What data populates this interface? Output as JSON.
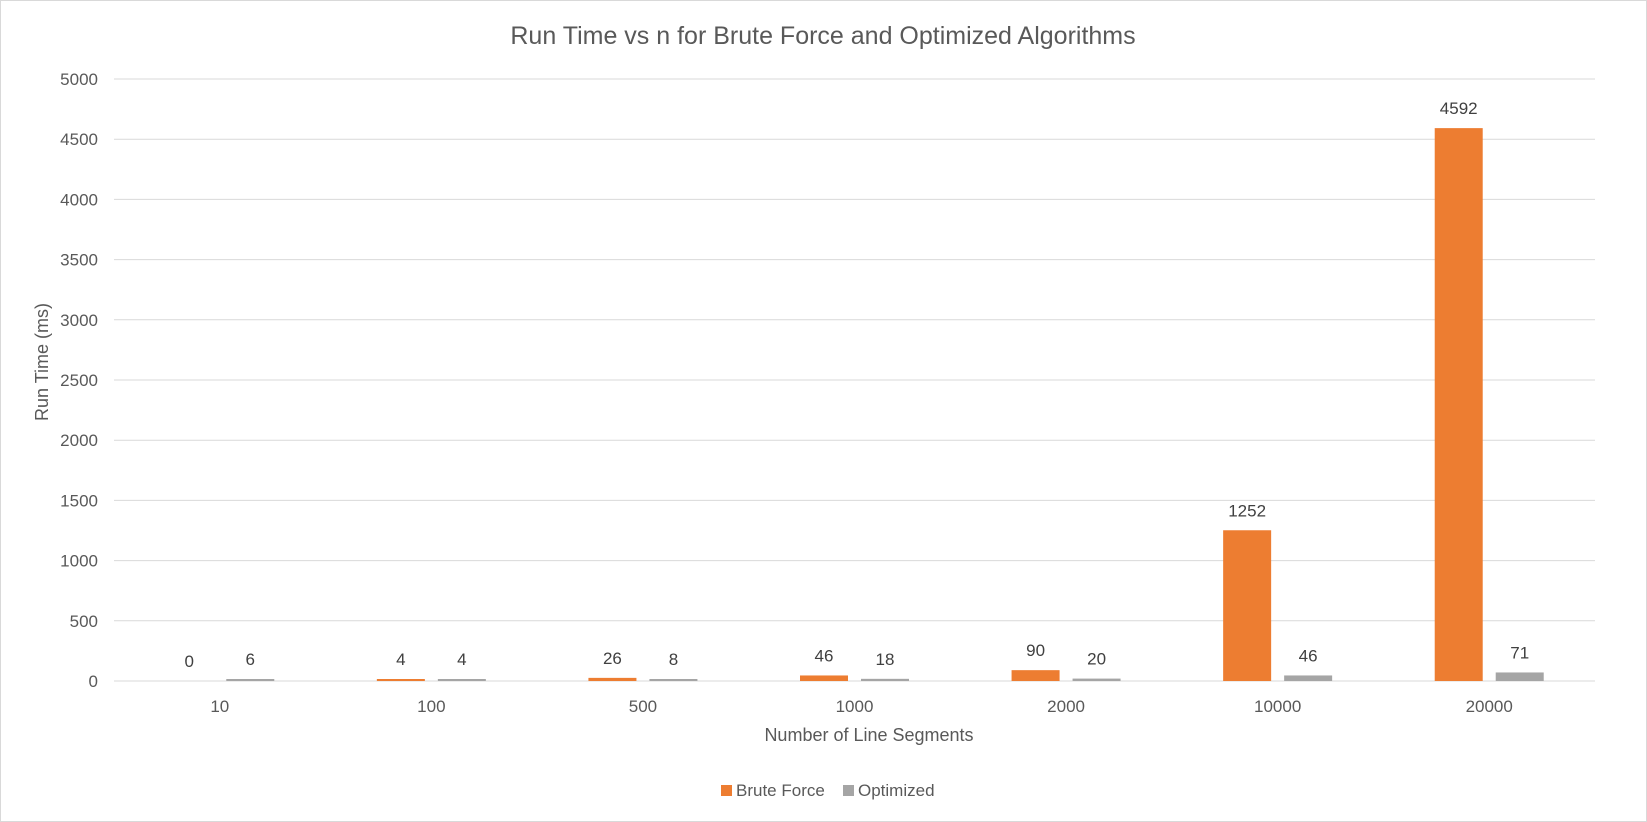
{
  "chart_data": {
    "type": "bar",
    "title": "Run Time vs n for Brute Force and Optimized Algorithms",
    "xlabel": "Number of Line Segments",
    "ylabel": "Run Time (ms)",
    "categories": [
      "10",
      "100",
      "500",
      "1000",
      "2000",
      "10000",
      "20000"
    ],
    "series": [
      {
        "name": "Brute Force",
        "color": "#ed7d31",
        "values": [
          0,
          4,
          26,
          46,
          90,
          1252,
          4592
        ]
      },
      {
        "name": "Optimized",
        "color": "#a5a5a5",
        "values": [
          6,
          4,
          8,
          18,
          20,
          46,
          71
        ]
      }
    ],
    "ylim": [
      0,
      5000
    ],
    "yticks": [
      0,
      500,
      1000,
      1500,
      2000,
      2500,
      3000,
      3500,
      4000,
      4500,
      5000
    ],
    "grid": true,
    "data_labels": true,
    "legend": "bottom"
  }
}
